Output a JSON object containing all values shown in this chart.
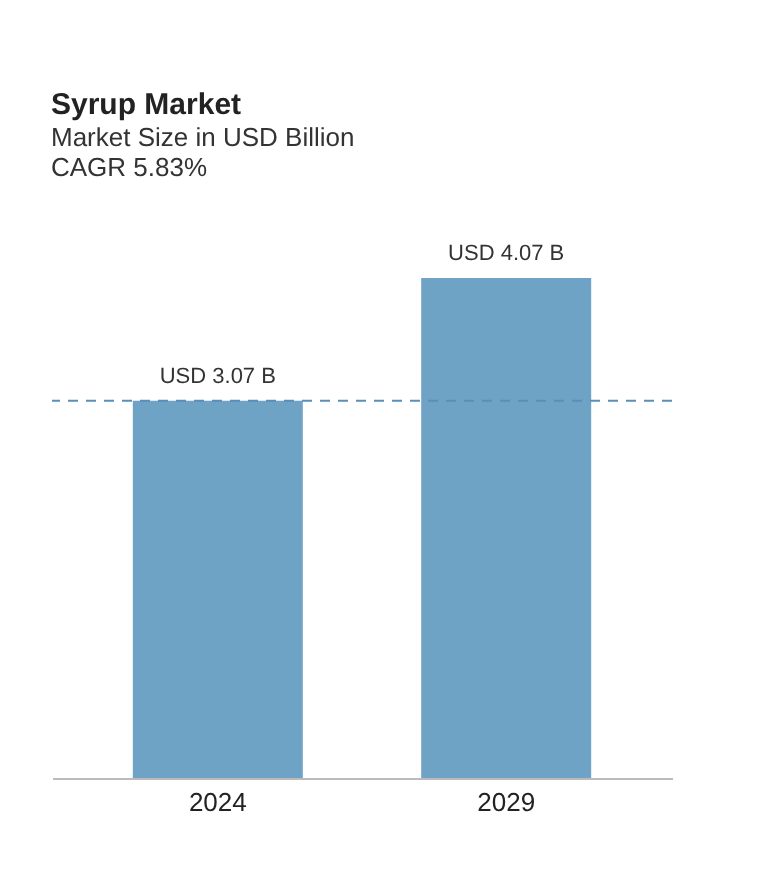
{
  "chart_data": {
    "type": "bar",
    "title": "Syrup Market",
    "subtitle": "Market Size in USD Billion",
    "annotations": [
      "CAGR 5.83%"
    ],
    "categories": [
      "2024",
      "2029"
    ],
    "values": [
      3.07,
      4.07
    ],
    "value_labels": [
      "USD 3.07 B",
      "USD 4.07 B"
    ],
    "color": "#6fa3c6",
    "ref_lines": [
      {
        "axis": "y",
        "value": 3.07,
        "color": "#5a8fb8",
        "line_style": "dashed"
      }
    ],
    "grid": false,
    "tick_labels": "x"
  }
}
